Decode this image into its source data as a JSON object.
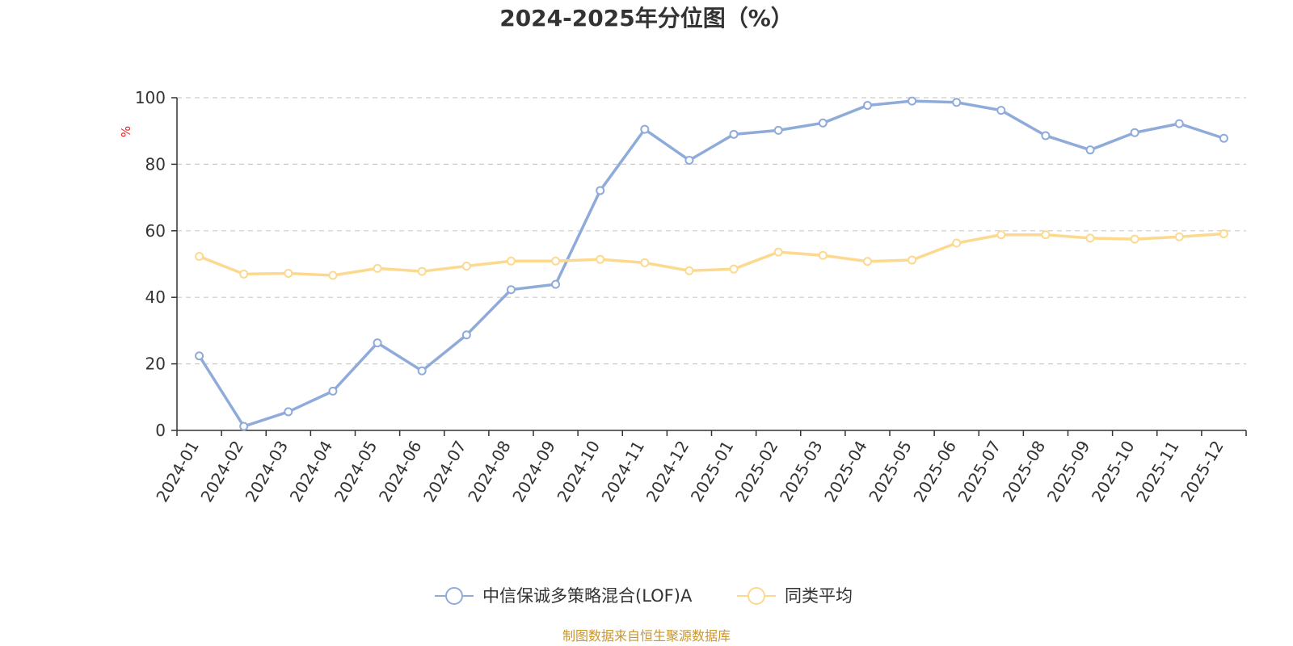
{
  "chart_data": {
    "type": "line",
    "title": "2024-2025年分位图（%）",
    "ylabel": "%",
    "xlabel": "",
    "ylim": [
      0,
      100
    ],
    "yticks": [
      0,
      20,
      40,
      60,
      80,
      100
    ],
    "grid": true,
    "legend_position": "bottom",
    "categories": [
      "2024-01",
      "2024-02",
      "2024-03",
      "2024-04",
      "2024-05",
      "2024-06",
      "2024-07",
      "2024-08",
      "2024-09",
      "2024-10",
      "2024-11",
      "2024-12",
      "2025-01",
      "2025-02",
      "2025-03",
      "2025-04",
      "2025-05",
      "2025-06",
      "2025-07",
      "2025-08",
      "2025-09",
      "2025-10",
      "2025-11",
      "2025-12"
    ],
    "series": [
      {
        "name": "中信保诚多策略混合(LOF)A",
        "color": "#8fabd9",
        "values": [
          22.4,
          1.2,
          5.6,
          11.8,
          26.3,
          17.9,
          28.7,
          42.3,
          43.9,
          72.1,
          90.5,
          81.2,
          89.0,
          90.2,
          92.4,
          97.7,
          99.0,
          98.6,
          96.2,
          88.6,
          84.3,
          89.5,
          92.2,
          87.8
        ]
      },
      {
        "name": "同类平均",
        "color": "#fcd98f",
        "values": [
          52.3,
          47.0,
          47.2,
          46.6,
          48.7,
          47.8,
          49.4,
          50.9,
          50.9,
          51.4,
          50.4,
          48.0,
          48.5,
          53.6,
          52.6,
          50.8,
          51.2,
          56.3,
          58.8,
          58.8,
          57.8,
          57.5,
          58.2,
          59.1
        ]
      }
    ]
  },
  "legend": {
    "items": [
      {
        "label": "中信保诚多策略混合(LOF)A",
        "color": "#8fabd9"
      },
      {
        "label": "同类平均",
        "color": "#fcd98f"
      }
    ]
  },
  "footer": {
    "source": "制图数据来自恒生聚源数据库",
    "source_color": "#c9962b"
  },
  "colors": {
    "unit_label": "#e02020",
    "grid": "#cccccc",
    "axis": "#333333"
  }
}
